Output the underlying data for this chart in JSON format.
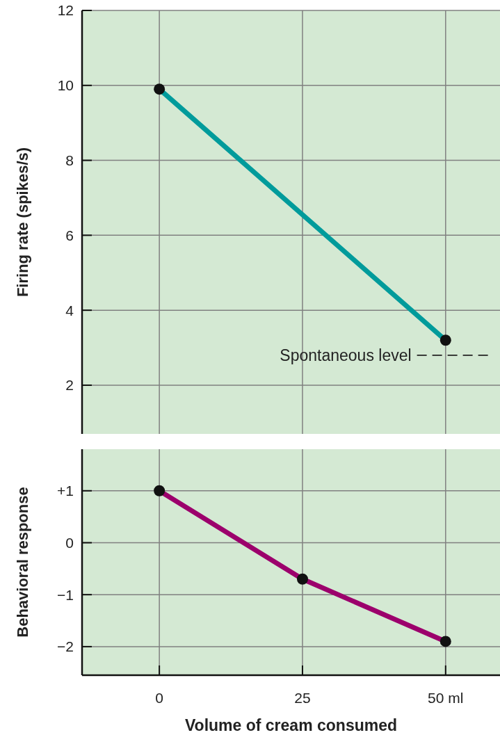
{
  "chart_data": [
    {
      "type": "line",
      "ylabel": "Firing rate (spikes/s)",
      "x": [
        0,
        50
      ],
      "xlim": [
        -13.5,
        59.5
      ],
      "xticks": [
        0,
        25,
        50
      ],
      "ylim": [
        0.7,
        12
      ],
      "yticks": [
        2,
        4,
        6,
        8,
        10,
        12
      ],
      "tick_labels": "y",
      "grid": true,
      "marker": "circle",
      "line_style": "solid",
      "series": [
        {
          "color": "#009b9b",
          "values": [
            9.9,
            3.2
          ]
        }
      ],
      "ref_lines": [
        {
          "axis": "y",
          "value": 2.8,
          "label": "Spontaneous level",
          "line_style": "dashed",
          "color": "#222222"
        }
      ]
    },
    {
      "type": "line",
      "xlabel": "Volume of cream consumed",
      "ylabel": "Behavioral response",
      "x": [
        0,
        25,
        50
      ],
      "xlim": [
        -13.5,
        59.5
      ],
      "xticks": [
        0,
        25,
        {
          "value": 50,
          "label": "50 ml"
        }
      ],
      "ylim": [
        -2.55,
        1.8
      ],
      "yticks": [
        {
          "value": 1,
          "label": "+1"
        },
        0,
        {
          "value": -1,
          "label": "−1"
        },
        {
          "value": -2,
          "label": "−2"
        }
      ],
      "grid": true,
      "marker": "circle",
      "line_style": "solid",
      "series": [
        {
          "color": "#9c006c",
          "values": [
            1.0,
            -0.7,
            -1.9
          ]
        }
      ]
    }
  ]
}
